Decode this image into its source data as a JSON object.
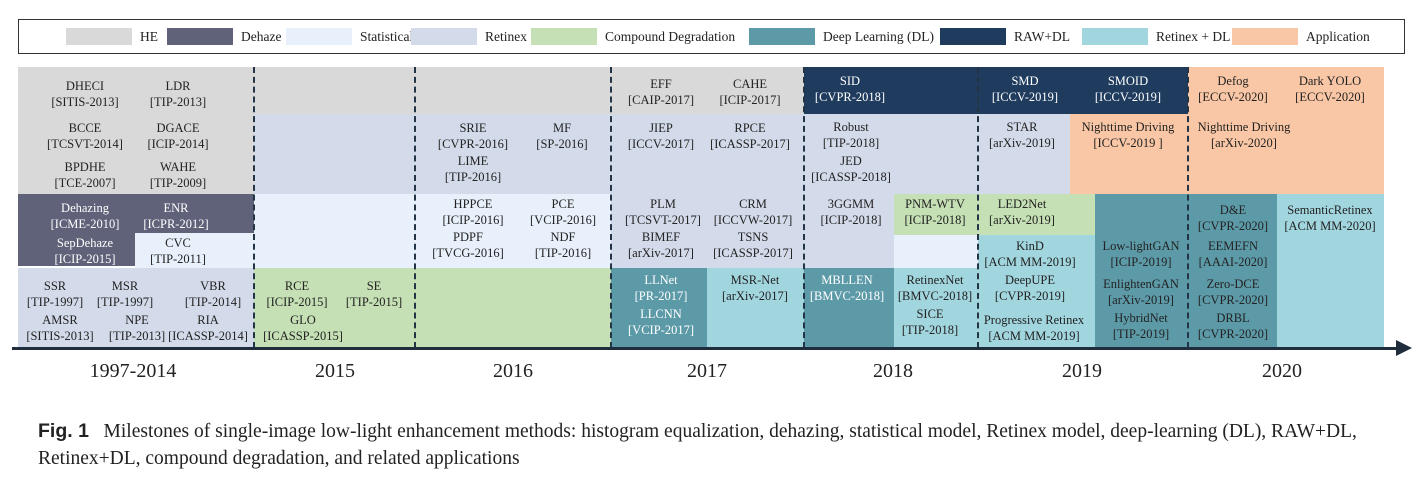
{
  "legend": [
    {
      "label": "HE",
      "color": "#d9d9d9"
    },
    {
      "label": "Dehaze",
      "color": "#5f6279"
    },
    {
      "label": "Statistical",
      "color": "#e8f1fb"
    },
    {
      "label": "Retinex",
      "color": "#d3dbea"
    },
    {
      "label": "Compound Degradation",
      "color": "#c5e0b4"
    },
    {
      "label": "Deep Learning (DL)",
      "color": "#5d9aa8"
    },
    {
      "label": "RAW+DL",
      "color": "#1f3c5e"
    },
    {
      "label": "Retinex + DL",
      "color": "#a2d6df"
    },
    {
      "label": "Application",
      "color": "#f9c7a5"
    }
  ],
  "years": [
    "1997-2014",
    "2015",
    "2016",
    "2017",
    "2018",
    "2019",
    "2020"
  ],
  "entries": [
    {
      "name": "DHECI",
      "venue": "[SITIS-2013]"
    },
    {
      "name": "LDR",
      "venue": "[TIP-2013]"
    },
    {
      "name": "BCCE",
      "venue": "[TCSVT-2014]"
    },
    {
      "name": "DGACE",
      "venue": "[ICIP-2014]"
    },
    {
      "name": "BPDHE",
      "venue": "[TCE-2007]"
    },
    {
      "name": "WAHE",
      "venue": "[TIP-2009]"
    },
    {
      "name": "Dehazing",
      "venue": "[ICME-2010]"
    },
    {
      "name": "ENR",
      "venue": "[ICPR-2012]"
    },
    {
      "name": "SepDehaze",
      "venue": "[ICIP-2015]"
    },
    {
      "name": "CVC",
      "venue": "[TIP-2011]"
    },
    {
      "name": "SSR",
      "venue": "[TIP-1997]"
    },
    {
      "name": "MSR",
      "venue": "[TIP-1997]"
    },
    {
      "name": "VBR",
      "venue": "[TIP-2014]"
    },
    {
      "name": "AMSR",
      "venue": "[SITIS-2013]"
    },
    {
      "name": "NPE",
      "venue": "[TIP-2013]"
    },
    {
      "name": "RIA",
      "venue": "[ICASSP-2014]"
    },
    {
      "name": "RCE",
      "venue": "[ICIP-2015]"
    },
    {
      "name": "SE",
      "venue": "[TIP-2015]"
    },
    {
      "name": "GLO",
      "venue": "[ICASSP-2015]"
    },
    {
      "name": "SRIE",
      "venue": "[CVPR-2016]"
    },
    {
      "name": "MF",
      "venue": "[SP-2016]"
    },
    {
      "name": "LIME",
      "venue": "[TIP-2016]"
    },
    {
      "name": "HPPCE",
      "venue": "[ICIP-2016]"
    },
    {
      "name": "PCE",
      "venue": "[VCIP-2016]"
    },
    {
      "name": "PDPF",
      "venue": "[TVCG-2016]"
    },
    {
      "name": "NDF",
      "venue": "[TIP-2016]"
    },
    {
      "name": "EFF",
      "venue": "[CAIP-2017]"
    },
    {
      "name": "CAHE",
      "venue": "[ICIP-2017]"
    },
    {
      "name": "JIEP",
      "venue": "[ICCV-2017]"
    },
    {
      "name": "RPCE",
      "venue": "[ICASSP-2017]"
    },
    {
      "name": "PLM",
      "venue": "[TCSVT-2017]"
    },
    {
      "name": "CRM",
      "venue": "[ICCVW-2017]"
    },
    {
      "name": "BIMEF",
      "venue": "[arXiv-2017]"
    },
    {
      "name": "TSNS",
      "venue": "[ICASSP-2017]"
    },
    {
      "name": "LLNet",
      "venue": "[PR-2017]"
    },
    {
      "name": "LLCNN",
      "venue": "[VCIP-2017]"
    },
    {
      "name": "MSR-Net",
      "venue": "[arXiv-2017]"
    },
    {
      "name": "SID",
      "venue": "[CVPR-2018]"
    },
    {
      "name": "Robust",
      "venue": "[TIP-2018]"
    },
    {
      "name": "JED",
      "venue": "[ICASSP-2018]"
    },
    {
      "name": "3GGMM",
      "venue": "[ICIP-2018]"
    },
    {
      "name": "PNM-WTV",
      "venue": "[ICIP-2018]"
    },
    {
      "name": "MBLLEN",
      "venue": "[BMVC-2018]"
    },
    {
      "name": "RetinexNet",
      "venue": "[BMVC-2018]"
    },
    {
      "name": "SICE",
      "venue": "[TIP-2018]"
    },
    {
      "name": "SMD",
      "venue": "[ICCV-2019]"
    },
    {
      "name": "SMOID",
      "venue": "[ICCV-2019]"
    },
    {
      "name": "STAR",
      "venue": "[arXiv-2019]"
    },
    {
      "name": "Nighttime Driving",
      "venue": "[ICCV-2019 ]"
    },
    {
      "name": "LED2Net",
      "venue": "[arXiv-2019]"
    },
    {
      "name": "KinD",
      "venue": "[ACM MM-2019]"
    },
    {
      "name": "DeepUPE",
      "venue": "[CVPR-2019]"
    },
    {
      "name": "Progressive Retinex",
      "venue": "[ACM MM-2019]"
    },
    {
      "name": "Low-lightGAN",
      "venue": "[ICIP-2019]"
    },
    {
      "name": "EnlightenGAN",
      "venue": "[arXiv-2019]"
    },
    {
      "name": "HybridNet",
      "venue": "[TIP-2019]"
    },
    {
      "name": "Defog",
      "venue": "[ECCV-2020]"
    },
    {
      "name": "Dark YOLO",
      "venue": "[ECCV-2020]"
    },
    {
      "name": "Nighttime Driving",
      "venue": "[arXiv-2020]"
    },
    {
      "name": "D&E",
      "venue": "[CVPR-2020]"
    },
    {
      "name": "SemanticRetinex",
      "venue": "[ACM MM-2020]"
    },
    {
      "name": "EEMEFN",
      "venue": "[AAAI-2020]"
    },
    {
      "name": "Zero-DCE",
      "venue": "[CVPR-2020]"
    },
    {
      "name": "DRBL",
      "venue": "[CVPR-2020]"
    }
  ],
  "caption": {
    "label": "Fig. 1",
    "text": "Milestones of single-image low-light enhancement methods: histogram equalization, dehazing, statistical model, Retinex model, deep-learning (DL), RAW+DL, Retinex+DL, compound degradation, and related applications"
  }
}
